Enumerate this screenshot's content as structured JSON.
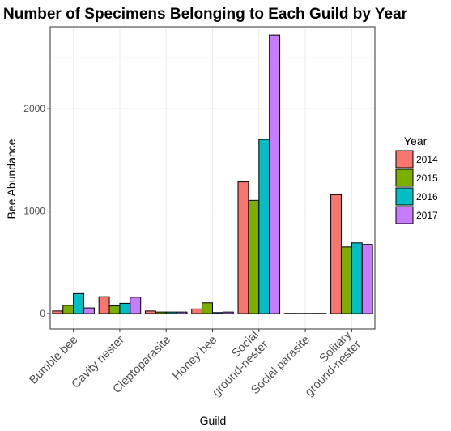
{
  "chart_data": {
    "type": "bar",
    "title": "Number of Specimens Belonging to Each Guild by Year",
    "xlabel": "Guild",
    "ylabel": "Bee Abundance",
    "ylim": [
      -150,
      2800
    ],
    "yticks": [
      0,
      1000,
      2000
    ],
    "grid": true,
    "legend_title": "Year",
    "legend_position": "right",
    "categories": [
      [
        "Bumble bee"
      ],
      [
        "Cavity nester"
      ],
      [
        "Cleptoparasite"
      ],
      [
        "Honey bee"
      ],
      [
        "Social",
        "ground-nester"
      ],
      [
        "Social parasite"
      ],
      [
        "Solitary",
        "ground-nester"
      ]
    ],
    "series": [
      {
        "name": "2014",
        "color": "#F8766D",
        "values": [
          25,
          165,
          25,
          45,
          1285,
          2,
          1160
        ]
      },
      {
        "name": "2015",
        "color": "#7CAE00",
        "values": [
          80,
          75,
          15,
          105,
          1105,
          2,
          650
        ]
      },
      {
        "name": "2016",
        "color": "#00BFC4",
        "values": [
          195,
          100,
          15,
          10,
          1700,
          2,
          690
        ]
      },
      {
        "name": "2017",
        "color": "#C77CFF",
        "values": [
          55,
          160,
          15,
          15,
          2720,
          2,
          675
        ]
      }
    ]
  }
}
